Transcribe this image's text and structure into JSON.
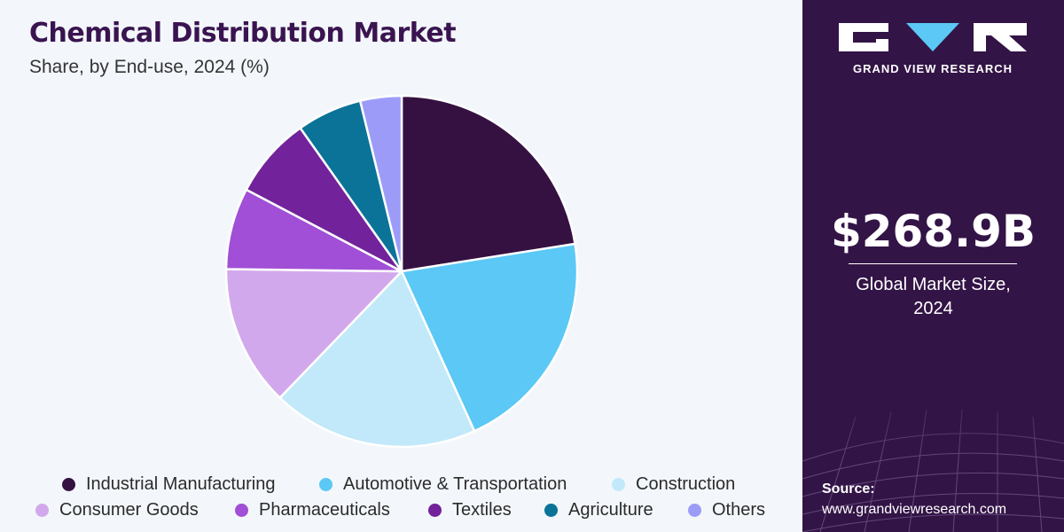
{
  "chart_data": {
    "type": "pie",
    "title": "Chemical Distribution Market",
    "subtitle": "Share, by End-use, 2024 (%)",
    "categories": [
      "Industrial Manufacturing",
      "Automotive & Transportation",
      "Construction",
      "Consumer Goods",
      "Pharmaceuticals",
      "Textiles",
      "Agriculture",
      "Others"
    ],
    "values": [
      22.5,
      20.7,
      19.0,
      13.0,
      7.5,
      7.5,
      6.0,
      3.8
    ],
    "colors": [
      "#351142",
      "#5bc8f5",
      "#c1e9f9",
      "#d2a8ec",
      "#a04fd6",
      "#72229a",
      "#0b7398",
      "#9c9cf8"
    ],
    "legend_position": "bottom"
  },
  "sidebar": {
    "brand_name": "GRAND VIEW RESEARCH",
    "market_size_value": "$268.9B",
    "market_size_label_line1": "Global Market Size,",
    "market_size_label_line2": "2024",
    "source_label": "Source:",
    "source_url": "www.grandviewresearch.com"
  }
}
